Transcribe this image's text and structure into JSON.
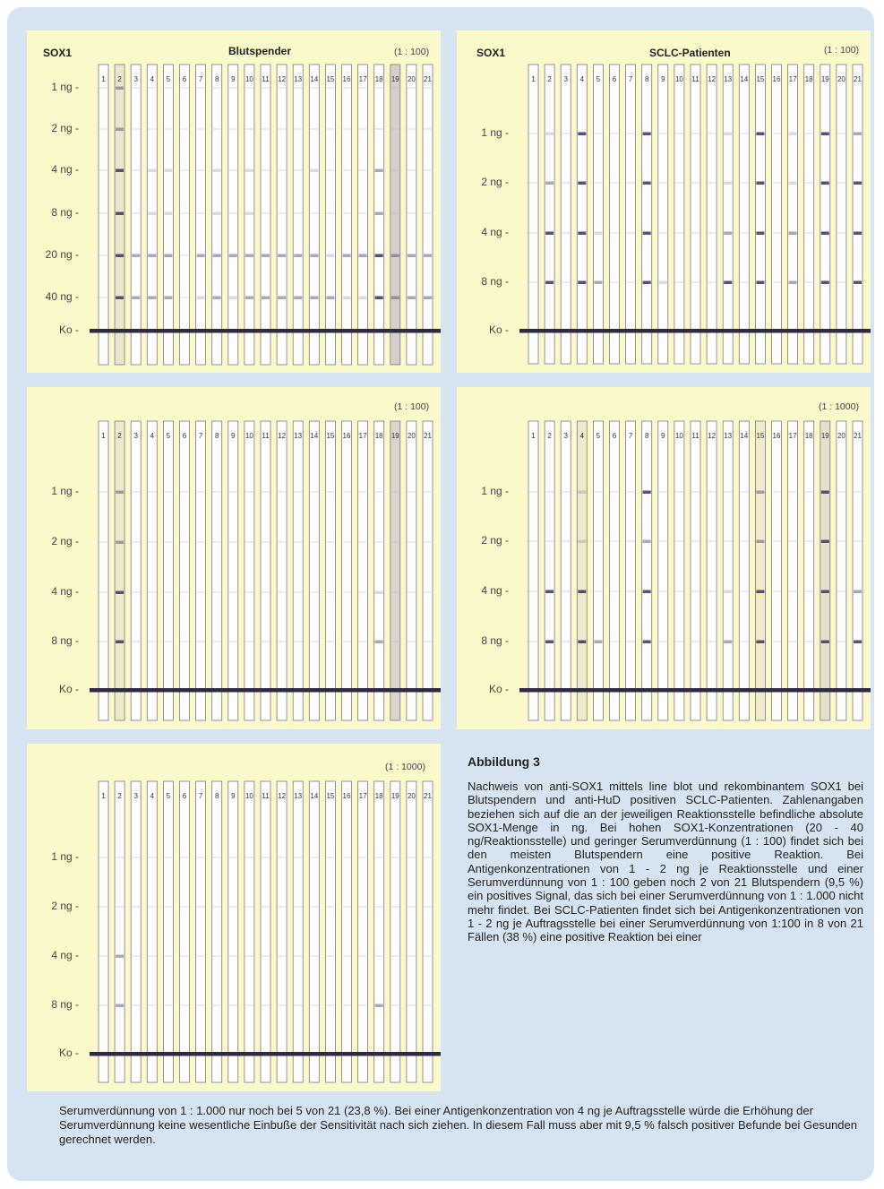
{
  "panels": [
    {
      "id": "p1",
      "antigen": "SOX1",
      "title": "Blutspender",
      "dilution": "(1 : 100)",
      "rows": [
        "1 ng",
        "2 ng",
        "4 ng",
        "8 ng",
        "20 ng",
        "40 ng",
        "Ko"
      ],
      "lanes": [
        "1",
        "2",
        "3",
        "4",
        "5",
        "6",
        "7",
        "8",
        "9",
        "10",
        "11",
        "12",
        "13",
        "14",
        "15",
        "16",
        "17",
        "18",
        "19",
        "20",
        "21"
      ]
    },
    {
      "id": "p2",
      "antigen": "SOX1",
      "title": "SCLC-Patienten",
      "dilution": "(1 : 100)",
      "rows": [
        "1 ng",
        "2 ng",
        "4 ng",
        "8 ng",
        "Ko"
      ],
      "lanes": [
        "1",
        "2",
        "3",
        "4",
        "5",
        "6",
        "7",
        "8",
        "9",
        "10",
        "11",
        "12",
        "13",
        "14",
        "15",
        "16",
        "17",
        "18",
        "19",
        "20",
        "21"
      ]
    },
    {
      "id": "p3",
      "antigen": "",
      "title": "",
      "dilution": "(1 : 100)",
      "rows": [
        "1 ng",
        "2 ng",
        "4 ng",
        "8 ng",
        "Ko"
      ],
      "lanes": [
        "1",
        "2",
        "3",
        "4",
        "5",
        "6",
        "7",
        "8",
        "9",
        "10",
        "11",
        "12",
        "13",
        "14",
        "15",
        "16",
        "17",
        "18",
        "19",
        "20",
        "21"
      ]
    },
    {
      "id": "p4",
      "antigen": "",
      "title": "",
      "dilution": "(1 : 1000)",
      "rows": [
        "1 ng",
        "2 ng",
        "4 ng",
        "8 ng",
        "Ko"
      ],
      "lanes": [
        "1",
        "2",
        "3",
        "4",
        "5",
        "6",
        "7",
        "8",
        "9",
        "10",
        "11",
        "12",
        "13",
        "14",
        "15",
        "16",
        "17",
        "18",
        "19",
        "20",
        "21"
      ]
    },
    {
      "id": "p5",
      "antigen": "",
      "title": "",
      "dilution": "(1 : 1000)",
      "rows": [
        "1 ng",
        "2 ng",
        "4 ng",
        "8 ng",
        "Ko"
      ],
      "lanes": [
        "1",
        "2",
        "3",
        "4",
        "5",
        "6",
        "7",
        "8",
        "9",
        "10",
        "11",
        "12",
        "13",
        "14",
        "15",
        "16",
        "17",
        "18",
        "19",
        "20",
        "21"
      ]
    }
  ],
  "caption": {
    "heading": "Abbildung 3",
    "body": "Nachweis von anti-SOX1 mittels line blot und rekombinantem SOX1 bei Blutspendern und anti-HuD positiven SCLC-Patienten. Zahlenangaben beziehen sich auf die an der jeweiligen Reaktionsstelle befindliche absolute SOX1-Menge in ng. Bei hohen SOX1-Konzentrationen (20 - 40 ng/Reaktionsstelle) und geringer Serumverdünnung (1 : 100) findet sich bei den meisten Blutspendern eine positive Reaktion. Bei Antigenkonzentrationen von 1 - 2 ng je Reaktionsstelle und einer Serumverdünnung von 1 : 100 geben noch 2 von 21 Blutspendern (9,5 %) ein positives Signal, das sich bei einer Serumverdünnung von 1 : 1.000 nicht mehr findet. Bei SCLC-Patienten findet sich bei Antigenkonzentrationen von 1 - 2 ng je Auftragsstelle bei einer Serumverdünnung von 1:100 in 8 von 21 Fällen (38 %) eine positive Reaktion bei einer",
    "continuation": "Serumverdünnung von 1 : 1.000 nur noch bei 5 von 21 (23,8 %). Bei einer Antigenkonzentration von 4 ng je Auftragsstelle würde die Erhöhung der Serumverdünnung keine wesentliche Einbuße der Sensitivität nach sich ziehen. In diesem Fall muss aber mit 9,5 % falsch positiver Befunde bei Gesunden gerechnet werden."
  },
  "colors": {
    "frame": "#d6e4f2",
    "panel": "#fbf8c9",
    "band": "#4a3a6a"
  }
}
